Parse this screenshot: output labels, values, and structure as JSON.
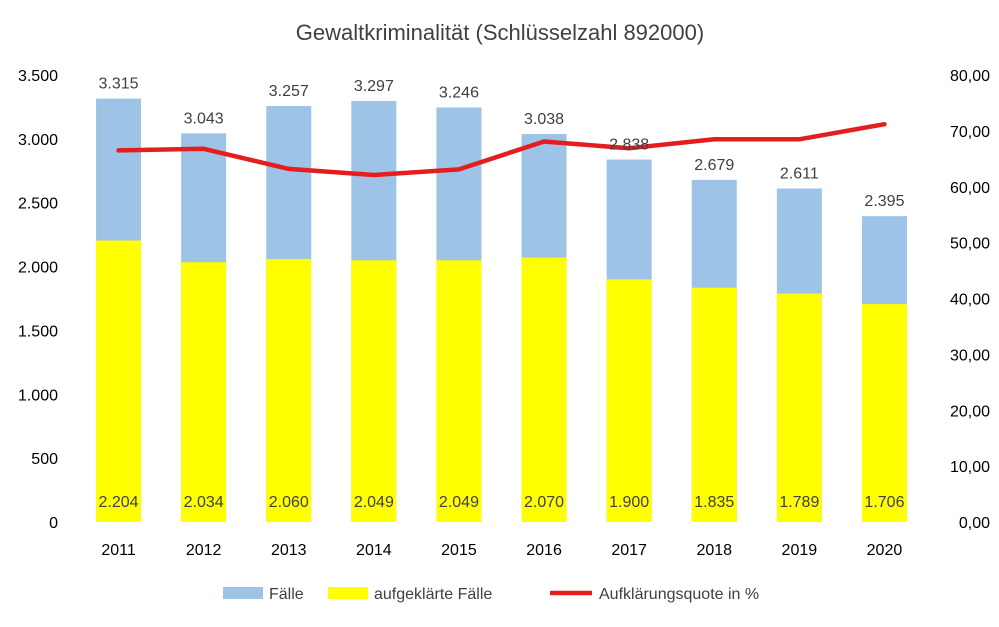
{
  "chart_data": {
    "type": "bar",
    "title": "Gewaltkriminalität (Schlüsselzahl 892000)",
    "categories": [
      "2011",
      "2012",
      "2013",
      "2014",
      "2015",
      "2016",
      "2017",
      "2018",
      "2019",
      "2020"
    ],
    "series": [
      {
        "name": "Fälle",
        "kind": "bar",
        "axis": "left",
        "color": "#9DC3E6",
        "values": [
          3315,
          3043,
          3257,
          3297,
          3246,
          3038,
          2838,
          2679,
          2611,
          2395
        ],
        "labels": [
          "3.315",
          "3.043",
          "3.257",
          "3.297",
          "3.246",
          "3.038",
          "2.838",
          "2.679",
          "2.611",
          "2.395"
        ]
      },
      {
        "name": "aufgeklärte Fälle",
        "kind": "bar",
        "axis": "left",
        "color": "#FFFF00",
        "values": [
          2204,
          2034,
          2060,
          2049,
          2049,
          2070,
          1900,
          1835,
          1789,
          1706
        ],
        "labels": [
          "2.204",
          "2.034",
          "2.060",
          "2.049",
          "2.049",
          "2.070",
          "1.900",
          "1.835",
          "1.789",
          "1.706"
        ]
      },
      {
        "name": "Aufklärungsquote in %",
        "kind": "line",
        "axis": "right",
        "color": "#E41E1E",
        "values": [
          66.5,
          66.8,
          63.2,
          62.1,
          63.1,
          68.1,
          66.9,
          68.5,
          68.5,
          71.2
        ]
      }
    ],
    "left_axis": {
      "ylim": [
        0,
        3500
      ],
      "ticks": [
        0,
        500,
        1000,
        1500,
        2000,
        2500,
        3000,
        3500
      ],
      "tick_labels": [
        "0",
        "500",
        "1.000",
        "1.500",
        "2.000",
        "2.500",
        "3.000",
        "3.500"
      ]
    },
    "right_axis": {
      "ylim": [
        0,
        80
      ],
      "ticks": [
        0,
        10,
        20,
        30,
        40,
        50,
        60,
        70,
        80
      ],
      "tick_labels": [
        "0,00",
        "10,00",
        "20,00",
        "30,00",
        "40,00",
        "50,00",
        "60,00",
        "70,00",
        "80,00"
      ]
    },
    "grid": false,
    "legend": "bottom"
  }
}
